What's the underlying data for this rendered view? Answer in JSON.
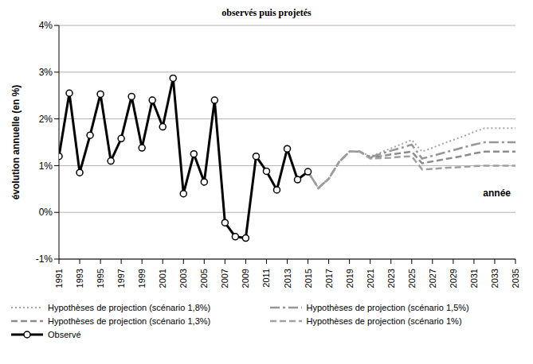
{
  "chart_data": {
    "type": "line",
    "title": "observés puis projetés",
    "y_label": "évolution annuelle (en %)",
    "x_label": "année",
    "x": [
      1991,
      1992,
      1993,
      1994,
      1995,
      1996,
      1997,
      1998,
      1999,
      2000,
      2001,
      2002,
      2003,
      2004,
      2005,
      2006,
      2007,
      2008,
      2009,
      2010,
      2011,
      2012,
      2013,
      2014,
      2015,
      2016,
      2017,
      2018,
      2019,
      2020,
      2021,
      2022,
      2023,
      2024,
      2025,
      2026,
      2027,
      2028,
      2029,
      2030,
      2031,
      2032,
      2033,
      2034,
      2035
    ],
    "xlim": [
      1991,
      2035
    ],
    "xticks": [
      1991,
      1993,
      1995,
      1997,
      1999,
      2001,
      2003,
      2005,
      2007,
      2009,
      2011,
      2013,
      2015,
      2017,
      2019,
      2021,
      2023,
      2025,
      2027,
      2029,
      2031,
      2033,
      2035
    ],
    "ylim": [
      -1,
      4
    ],
    "yticks": [
      {
        "value": -1,
        "label": "-1%"
      },
      {
        "value": 0,
        "label": "0%"
      },
      {
        "value": 1,
        "label": "1%"
      },
      {
        "value": 2,
        "label": "2%"
      },
      {
        "value": 3,
        "label": "3%"
      },
      {
        "value": 4,
        "label": "4%"
      }
    ],
    "grid": true,
    "legend": "bottom",
    "series": [
      {
        "name": "Hypothèses de projection (scénario 1,8%)",
        "color": "#a6a6a6",
        "line_style": "dotted",
        "marker": "none",
        "values": [
          null,
          null,
          null,
          null,
          null,
          null,
          null,
          null,
          null,
          null,
          null,
          null,
          null,
          null,
          null,
          null,
          null,
          null,
          null,
          null,
          null,
          null,
          null,
          null,
          0.87,
          0.52,
          0.72,
          1.08,
          1.3,
          1.3,
          1.2,
          1.28,
          1.37,
          1.46,
          1.55,
          1.3,
          1.38,
          1.47,
          1.55,
          1.63,
          1.72,
          1.8,
          1.8,
          1.8,
          1.8
        ]
      },
      {
        "name": "Hypothèses de projection (scénario 1,5%)",
        "color": "#969696",
        "line_style": "dashdot",
        "marker": "none",
        "values": [
          null,
          null,
          null,
          null,
          null,
          null,
          null,
          null,
          null,
          null,
          null,
          null,
          null,
          null,
          null,
          null,
          null,
          null,
          null,
          null,
          null,
          null,
          null,
          null,
          0.87,
          0.52,
          0.72,
          1.08,
          1.3,
          1.3,
          1.18,
          1.25,
          1.32,
          1.38,
          1.45,
          1.15,
          1.21,
          1.27,
          1.33,
          1.39,
          1.45,
          1.5,
          1.5,
          1.5,
          1.5
        ]
      },
      {
        "name": "Hypothèses de projection (scénario 1,3%)",
        "color": "#8c8c8c",
        "line_style": "dashed",
        "marker": "none",
        "values": [
          null,
          null,
          null,
          null,
          null,
          null,
          null,
          null,
          null,
          null,
          null,
          null,
          null,
          null,
          null,
          null,
          null,
          null,
          null,
          null,
          null,
          null,
          null,
          null,
          0.87,
          0.52,
          0.72,
          1.08,
          1.3,
          1.3,
          1.17,
          1.2,
          1.24,
          1.27,
          1.3,
          1.05,
          1.09,
          1.13,
          1.17,
          1.21,
          1.26,
          1.3,
          1.3,
          1.3,
          1.3
        ]
      },
      {
        "name": "Hypothèses de projection (scénario 1%)",
        "color": "#a0a0a0",
        "line_style": "dashed",
        "marker": "none",
        "values": [
          null,
          null,
          null,
          null,
          null,
          null,
          null,
          null,
          null,
          null,
          null,
          null,
          null,
          null,
          null,
          null,
          null,
          null,
          null,
          null,
          null,
          null,
          null,
          null,
          0.87,
          0.52,
          0.72,
          1.08,
          1.3,
          1.3,
          1.15,
          1.16,
          1.17,
          1.19,
          1.2,
          0.92,
          0.93,
          0.95,
          0.96,
          0.97,
          0.99,
          1.0,
          1.0,
          1.0,
          1.0
        ]
      },
      {
        "name": "Observé",
        "color": "#000000",
        "line_style": "solid",
        "marker": "circle",
        "values": [
          1.2,
          2.55,
          0.85,
          1.65,
          2.53,
          1.1,
          1.58,
          2.48,
          1.38,
          2.4,
          1.83,
          2.87,
          0.4,
          1.25,
          0.65,
          2.4,
          -0.22,
          -0.52,
          -0.55,
          1.2,
          0.88,
          0.48,
          1.36,
          0.7,
          0.87,
          null,
          null,
          null,
          null,
          null,
          null,
          null,
          null,
          null,
          null,
          null,
          null,
          null,
          null,
          null,
          null,
          null,
          null,
          null,
          null
        ]
      }
    ]
  }
}
